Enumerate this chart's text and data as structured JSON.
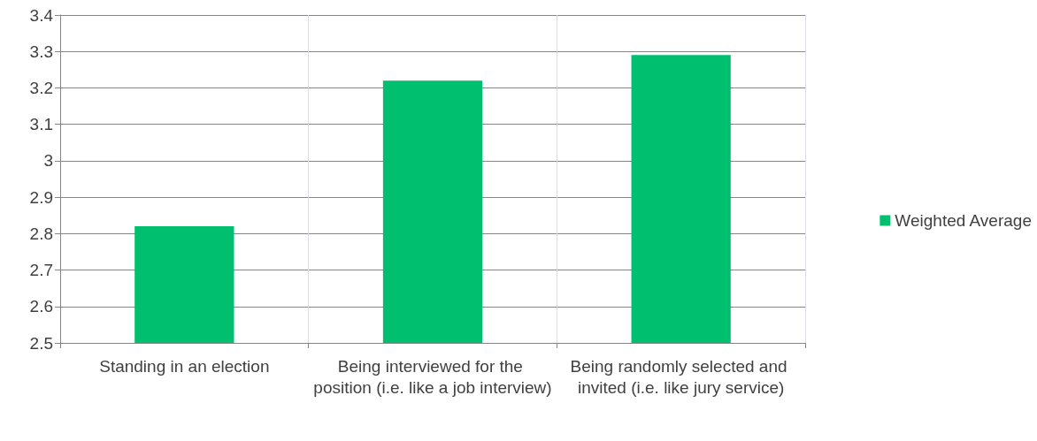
{
  "chart_data": {
    "type": "bar",
    "categories": [
      "Standing in an election",
      "Being interviewed for the position (i.e. like a job interview)",
      "Being randomly selected and invited (i.e. like jury service)"
    ],
    "series": [
      {
        "name": "Weighted Average",
        "color": "#00bf6f",
        "values": [
          2.82,
          3.22,
          3.29
        ]
      }
    ],
    "ylim": [
      2.5,
      3.4
    ],
    "yticks": [
      2.5,
      2.6,
      2.7,
      2.8,
      2.9,
      3,
      3.1,
      3.2,
      3.3,
      3.4
    ],
    "grid": true,
    "legend": "right"
  }
}
